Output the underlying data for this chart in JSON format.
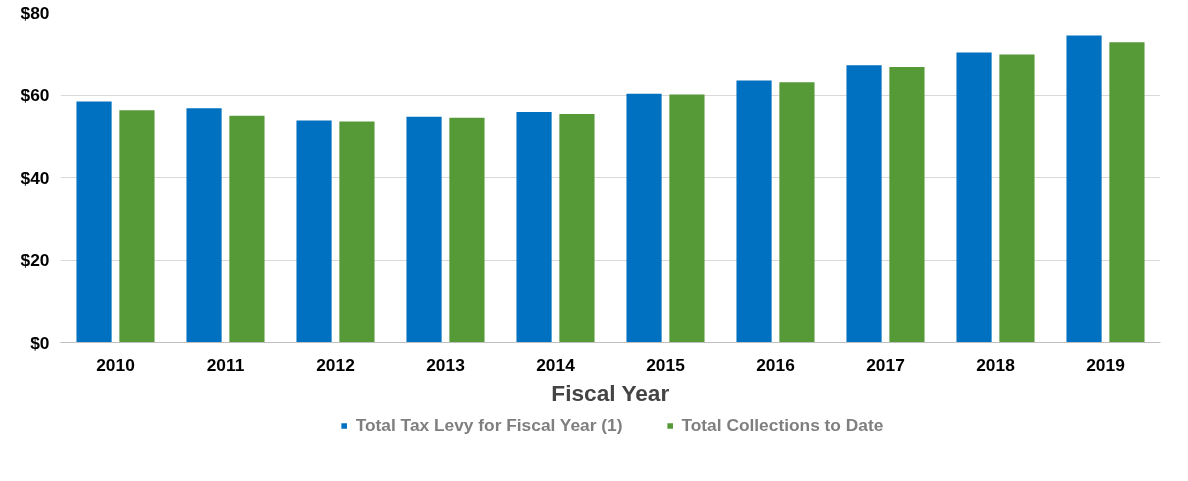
{
  "chart_data": {
    "type": "bar",
    "xlabel": "Fiscal Year",
    "categories": [
      "2010",
      "2011",
      "2012",
      "2013",
      "2014",
      "2015",
      "2016",
      "2017",
      "2018",
      "2019"
    ],
    "series": [
      {
        "name": "Total Tax Levy for Fiscal Year (1)",
        "color": "#0070c0",
        "values": [
          58.4,
          56.8,
          53.8,
          54.7,
          55.9,
          60.3,
          63.5,
          67.2,
          70.3,
          74.4
        ]
      },
      {
        "name": "Total Collections to Date",
        "color": "#559a37",
        "values": [
          56.3,
          55.0,
          53.6,
          54.5,
          55.4,
          60.1,
          63.1,
          66.8,
          69.8,
          72.8
        ]
      }
    ],
    "ylim": [
      0,
      80
    ],
    "yticks": [
      {
        "value": 0,
        "label": "$0"
      },
      {
        "value": 20,
        "label": "$20"
      },
      {
        "value": 40,
        "label": "$40"
      },
      {
        "value": 60,
        "label": "$60"
      },
      {
        "value": 80,
        "label": "$80"
      }
    ],
    "grid": "y",
    "legend": "bottom"
  }
}
